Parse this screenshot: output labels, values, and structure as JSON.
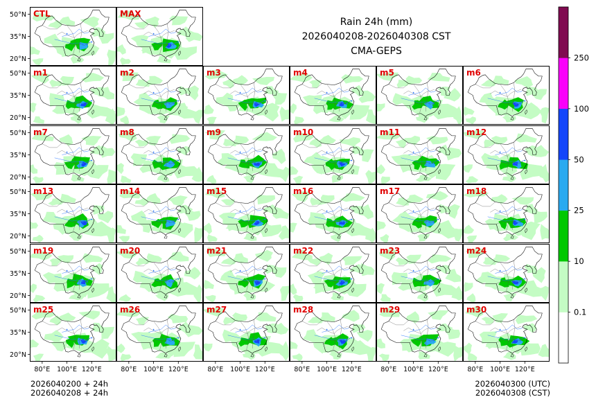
{
  "chart_data": {
    "type": "heatmap",
    "title_lines": [
      "Rain 24h (mm)",
      "2026040208-2026040308 CST",
      "CMA-GEPS"
    ],
    "variable": "Rain 24h (mm)",
    "valid_period": "2026040208-2026040308 CST",
    "model": "CMA-GEPS",
    "panels": {
      "top_row": [
        "CTL",
        "MAX"
      ],
      "members": [
        "m1",
        "m2",
        "m3",
        "m4",
        "m5",
        "m6",
        "m7",
        "m8",
        "m9",
        "m10",
        "m11",
        "m12",
        "m13",
        "m14",
        "m15",
        "m16",
        "m17",
        "m18",
        "m19",
        "m20",
        "m21",
        "m22",
        "m23",
        "m24",
        "m25",
        "m26",
        "m27",
        "m28",
        "m29",
        "m30"
      ]
    },
    "lat_ticks": [
      "50°N",
      "35°N",
      "20°N"
    ],
    "lat_values": [
      50,
      35,
      20
    ],
    "lon_ticks": [
      "80°E",
      "100°E",
      "120°E"
    ],
    "lon_values": [
      80,
      100,
      120
    ],
    "lon_range": [
      70,
      140
    ],
    "lat_range": [
      15,
      55
    ],
    "colorbar": {
      "levels": [
        0.1,
        10,
        25,
        50,
        100,
        250
      ],
      "level_labels": [
        "0.1",
        "10",
        "25",
        "50",
        "100",
        "250"
      ],
      "colors": [
        "#ffffff",
        "#c4fcc4",
        "#00c800",
        "#2aaaf0",
        "#1446fa",
        "#fa00fa",
        "#800a50"
      ]
    }
  },
  "footer": {
    "init_utc": "2026040200 + 24h",
    "init_cst": "2026040208 + 24h",
    "valid_utc": "2026040300 (UTC)",
    "valid_cst": "2026040308 (CST)"
  }
}
